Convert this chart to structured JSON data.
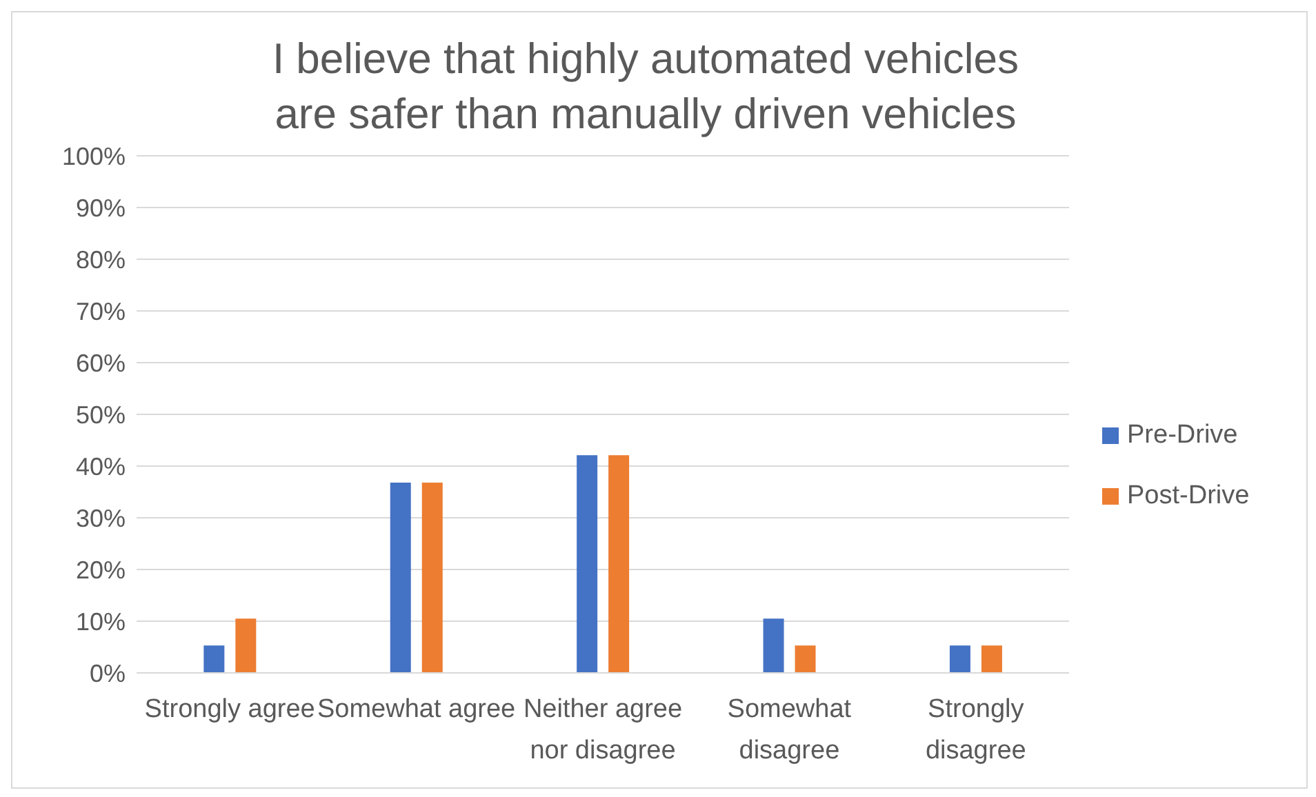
{
  "chart_data": {
    "type": "bar",
    "title": "I believe that highly automated vehicles are safer than manually driven vehicles",
    "categories": [
      "Strongly agree",
      "Somewhat agree",
      "Neither agree nor disagree",
      "Somewhat disagree",
      "Strongly disagree"
    ],
    "series": [
      {
        "name": "Pre-Drive",
        "color": "#4472c4",
        "values": [
          5.3,
          36.8,
          42.1,
          10.5,
          5.3
        ]
      },
      {
        "name": "Post-Drive",
        "color": "#ed7d31",
        "values": [
          10.5,
          36.8,
          42.1,
          5.3,
          5.3
        ]
      }
    ],
    "ylim": [
      0,
      100
    ],
    "yticks": [
      {
        "value": 0,
        "label": "0%"
      },
      {
        "value": 10,
        "label": "10%"
      },
      {
        "value": 20,
        "label": "20%"
      },
      {
        "value": 30,
        "label": "30%"
      },
      {
        "value": 40,
        "label": "40%"
      },
      {
        "value": 50,
        "label": "50%"
      },
      {
        "value": 60,
        "label": "60%"
      },
      {
        "value": 70,
        "label": "70%"
      },
      {
        "value": 80,
        "label": "80%"
      },
      {
        "value": 90,
        "label": "90%"
      },
      {
        "value": 100,
        "label": "100%"
      }
    ],
    "grid": "y",
    "legend": "right"
  }
}
